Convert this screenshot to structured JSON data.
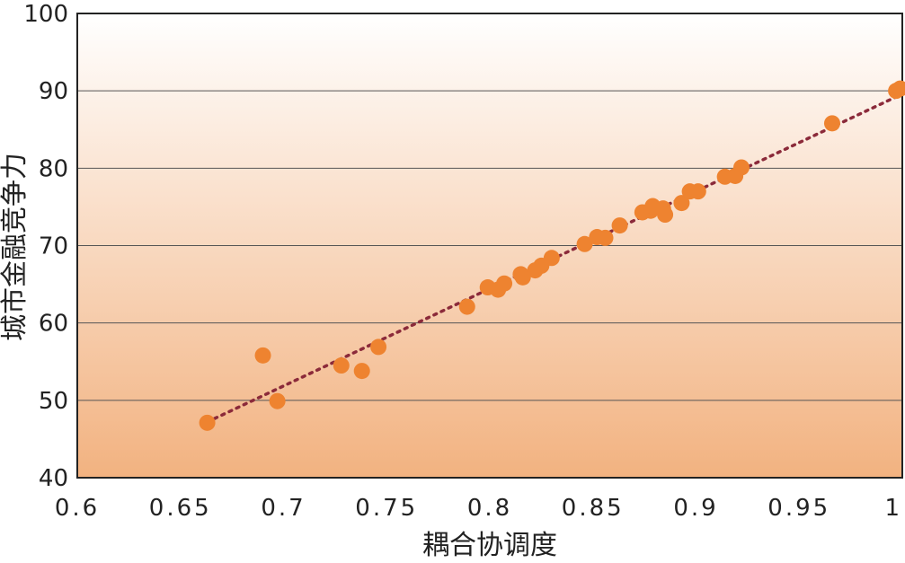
{
  "chart_data": {
    "type": "scatter",
    "xlabel": "耦合协调度",
    "ylabel": "城市金融竞争力",
    "xlim": [
      0.6,
      1.0
    ],
    "ylim": [
      40,
      100
    ],
    "x_ticks": [
      "0.6",
      "0.65",
      "0.7",
      "0.75",
      "0.8",
      "0.85",
      "0.9",
      "0.95",
      "1"
    ],
    "y_ticks": [
      "40",
      "50",
      "60",
      "70",
      "80",
      "90",
      "100"
    ],
    "grid": "horizontal",
    "legend": "none",
    "colors": {
      "points": "#ee8330",
      "trendline": "#8b2a3a",
      "bg_top": "#ffffff",
      "bg_bottom": "#f2b280",
      "grid": "#555555"
    },
    "points": [
      {
        "x": 0.663,
        "y": 47.1
      },
      {
        "x": 0.69,
        "y": 55.8
      },
      {
        "x": 0.697,
        "y": 49.9
      },
      {
        "x": 0.728,
        "y": 54.5
      },
      {
        "x": 0.738,
        "y": 53.8
      },
      {
        "x": 0.746,
        "y": 56.9
      },
      {
        "x": 0.789,
        "y": 62.1
      },
      {
        "x": 0.799,
        "y": 64.6
      },
      {
        "x": 0.804,
        "y": 64.3
      },
      {
        "x": 0.807,
        "y": 65.1
      },
      {
        "x": 0.815,
        "y": 66.3
      },
      {
        "x": 0.816,
        "y": 65.9
      },
      {
        "x": 0.822,
        "y": 66.8
      },
      {
        "x": 0.825,
        "y": 67.4
      },
      {
        "x": 0.83,
        "y": 68.4
      },
      {
        "x": 0.846,
        "y": 70.2
      },
      {
        "x": 0.852,
        "y": 71.1
      },
      {
        "x": 0.856,
        "y": 71.0
      },
      {
        "x": 0.863,
        "y": 72.6
      },
      {
        "x": 0.874,
        "y": 74.3
      },
      {
        "x": 0.878,
        "y": 74.5
      },
      {
        "x": 0.879,
        "y": 75.1
      },
      {
        "x": 0.884,
        "y": 74.8
      },
      {
        "x": 0.885,
        "y": 74.0
      },
      {
        "x": 0.893,
        "y": 75.5
      },
      {
        "x": 0.897,
        "y": 77.0
      },
      {
        "x": 0.901,
        "y": 77.0
      },
      {
        "x": 0.914,
        "y": 78.9
      },
      {
        "x": 0.919,
        "y": 79.0
      },
      {
        "x": 0.922,
        "y": 80.1
      },
      {
        "x": 0.966,
        "y": 85.8
      },
      {
        "x": 0.997,
        "y": 90.0
      },
      {
        "x": 0.999,
        "y": 90.3
      }
    ],
    "trendline": {
      "style": "dotted",
      "x": [
        0.663,
        1.0
      ],
      "y": [
        47.2,
        89.6
      ]
    }
  }
}
